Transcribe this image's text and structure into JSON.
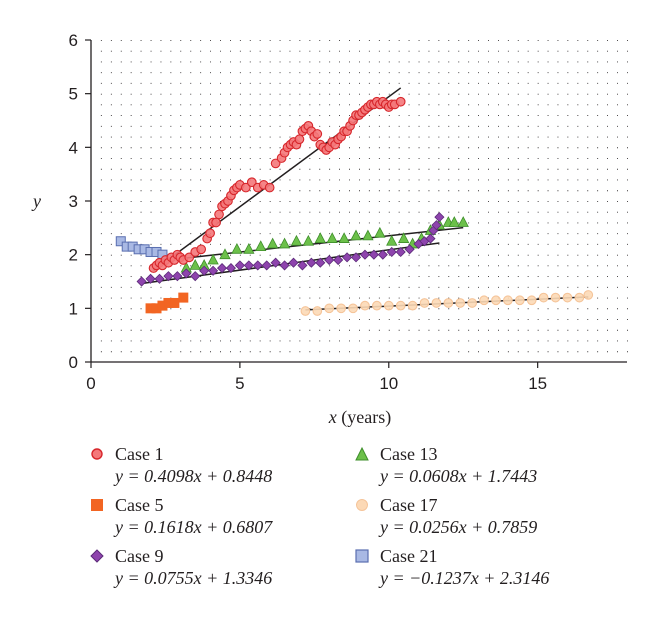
{
  "chart_data": {
    "type": "scatter",
    "title": "",
    "xlabel": "x",
    "xlabel_unit": "(years)",
    "ylabel": "y",
    "xlim": [
      0,
      18
    ],
    "ylim": [
      0,
      6
    ],
    "xticks": [
      "0",
      "5",
      "10",
      "15"
    ],
    "yticks": [
      "0",
      "1",
      "2",
      "3",
      "4",
      "5",
      "6"
    ],
    "grid": "dotted",
    "legend_position": "bottom",
    "series": [
      {
        "name": "Case 1",
        "equation": "y = 0.4098x + 0.8448",
        "marker": "circle",
        "color": "#f4787a",
        "stroke": "#d7262b",
        "fit": {
          "slope": 0.4098,
          "intercept": 0.8448,
          "xmin": 2.1,
          "xmax": 10.4
        },
        "x": [
          2.1,
          2.2,
          2.3,
          2.4,
          2.5,
          2.6,
          2.7,
          2.8,
          2.9,
          3.0,
          3.1,
          3.3,
          3.5,
          3.7,
          3.9,
          4.0,
          4.1,
          4.2,
          4.3,
          4.4,
          4.5,
          4.6,
          4.7,
          4.8,
          4.9,
          5.0,
          5.2,
          5.4,
          5.6,
          5.8,
          6.0,
          6.2,
          6.4,
          6.5,
          6.6,
          6.7,
          6.8,
          6.9,
          7.0,
          7.1,
          7.2,
          7.3,
          7.4,
          7.5,
          7.6,
          7.7,
          7.8,
          7.9,
          8.0,
          8.1,
          8.2,
          8.3,
          8.4,
          8.5,
          8.6,
          8.7,
          8.8,
          8.9,
          9.0,
          9.1,
          9.2,
          9.3,
          9.4,
          9.5,
          9.6,
          9.7,
          9.8,
          9.9,
          10.0,
          10.1,
          10.2,
          10.4
        ],
        "y": [
          1.75,
          1.8,
          1.85,
          1.8,
          1.9,
          1.85,
          1.95,
          1.9,
          2.0,
          1.95,
          1.9,
          1.95,
          2.05,
          2.1,
          2.3,
          2.4,
          2.6,
          2.6,
          2.75,
          2.9,
          2.95,
          3.0,
          3.1,
          3.2,
          3.25,
          3.3,
          3.25,
          3.35,
          3.25,
          3.3,
          3.25,
          3.7,
          3.8,
          3.9,
          4.0,
          4.05,
          4.1,
          4.05,
          4.15,
          4.3,
          4.35,
          4.4,
          4.3,
          4.2,
          4.25,
          4.05,
          4.0,
          3.95,
          4.0,
          4.1,
          4.05,
          4.15,
          4.2,
          4.3,
          4.3,
          4.4,
          4.5,
          4.6,
          4.6,
          4.65,
          4.7,
          4.75,
          4.8,
          4.8,
          4.85,
          4.8,
          4.85,
          4.8,
          4.75,
          4.8,
          4.8,
          4.85
        ]
      },
      {
        "name": "Case 5",
        "equation": "y = 0.1618x  +  0.6807",
        "marker": "square",
        "color": "#f26522",
        "stroke": "#f26522",
        "fit": {
          "slope": 0.1618,
          "intercept": 0.6807,
          "xmin": 2.0,
          "xmax": 3.1
        },
        "x": [
          2.0,
          2.2,
          2.4,
          2.6,
          2.8,
          3.1
        ],
        "y": [
          1.0,
          1.0,
          1.05,
          1.1,
          1.1,
          1.2
        ]
      },
      {
        "name": "Case 9",
        "equation": "y = 0.0755x + 1.3346",
        "marker": "diamond",
        "color": "#8e44ad",
        "stroke": "#5b2a78",
        "fit": {
          "slope": 0.0755,
          "intercept": 1.3346,
          "xmin": 1.7,
          "xmax": 11.7
        },
        "x": [
          1.7,
          2.0,
          2.3,
          2.6,
          2.9,
          3.2,
          3.5,
          3.8,
          4.1,
          4.4,
          4.7,
          5.0,
          5.3,
          5.6,
          5.9,
          6.2,
          6.5,
          6.8,
          7.1,
          7.4,
          7.7,
          8.0,
          8.3,
          8.6,
          8.9,
          9.2,
          9.5,
          9.8,
          10.1,
          10.4,
          10.7,
          11.0,
          11.2,
          11.4,
          11.5,
          11.6,
          11.7
        ],
        "y": [
          1.5,
          1.55,
          1.55,
          1.6,
          1.6,
          1.65,
          1.6,
          1.7,
          1.7,
          1.75,
          1.75,
          1.8,
          1.8,
          1.8,
          1.8,
          1.85,
          1.8,
          1.85,
          1.8,
          1.85,
          1.85,
          1.9,
          1.9,
          1.95,
          1.95,
          2.0,
          2.0,
          2.0,
          2.05,
          2.05,
          2.1,
          2.2,
          2.25,
          2.3,
          2.45,
          2.55,
          2.7
        ]
      },
      {
        "name": "Case 13",
        "equation": "y = 0.0608x + 1.7443",
        "marker": "triangle",
        "color": "#6cc04a",
        "stroke": "#3e8e2a",
        "fit": {
          "slope": 0.0608,
          "intercept": 1.7443,
          "xmin": 3.0,
          "xmax": 12.5
        },
        "x": [
          3.2,
          3.5,
          3.8,
          4.1,
          4.5,
          4.9,
          5.3,
          5.7,
          6.1,
          6.5,
          6.9,
          7.3,
          7.7,
          8.1,
          8.5,
          8.9,
          9.3,
          9.7,
          10.1,
          10.5,
          10.8,
          11.1,
          11.4,
          11.7,
          12.0,
          12.2,
          12.5
        ],
        "y": [
          1.75,
          1.8,
          1.8,
          1.9,
          2.0,
          2.1,
          2.1,
          2.15,
          2.2,
          2.2,
          2.25,
          2.25,
          2.3,
          2.3,
          2.3,
          2.35,
          2.35,
          2.4,
          2.25,
          2.3,
          2.2,
          2.3,
          2.45,
          2.55,
          2.6,
          2.6,
          2.6
        ]
      },
      {
        "name": "Case 17",
        "equation": "y = 0.0256x + 0.7859",
        "marker": "circle",
        "color": "#fcd9b6",
        "stroke": "#f5c499",
        "fit": {
          "slope": 0.0256,
          "intercept": 0.7859,
          "xmin": 7.2,
          "xmax": 16.7
        },
        "x": [
          7.2,
          7.6,
          8.0,
          8.4,
          8.8,
          9.2,
          9.6,
          10.0,
          10.4,
          10.8,
          11.2,
          11.6,
          12.0,
          12.4,
          12.8,
          13.2,
          13.6,
          14.0,
          14.4,
          14.8,
          15.2,
          15.6,
          16.0,
          16.4,
          16.7
        ],
        "y": [
          0.95,
          0.95,
          1.0,
          1.0,
          1.0,
          1.05,
          1.05,
          1.05,
          1.05,
          1.05,
          1.1,
          1.1,
          1.1,
          1.1,
          1.1,
          1.15,
          1.15,
          1.15,
          1.15,
          1.15,
          1.2,
          1.2,
          1.2,
          1.2,
          1.25
        ]
      },
      {
        "name": "Case 21",
        "equation": "y = −0.1237x + 2.3146",
        "marker": "square",
        "color": "#a9b9e4",
        "stroke": "#5a6fb0",
        "fit": {
          "slope": -0.1237,
          "intercept": 2.3146,
          "xmin": 1.0,
          "xmax": 2.5
        },
        "x": [
          1.0,
          1.2,
          1.4,
          1.6,
          1.8,
          2.0,
          2.2,
          2.4
        ],
        "y": [
          2.25,
          2.15,
          2.15,
          2.1,
          2.1,
          2.05,
          2.05,
          2.0
        ]
      }
    ]
  }
}
